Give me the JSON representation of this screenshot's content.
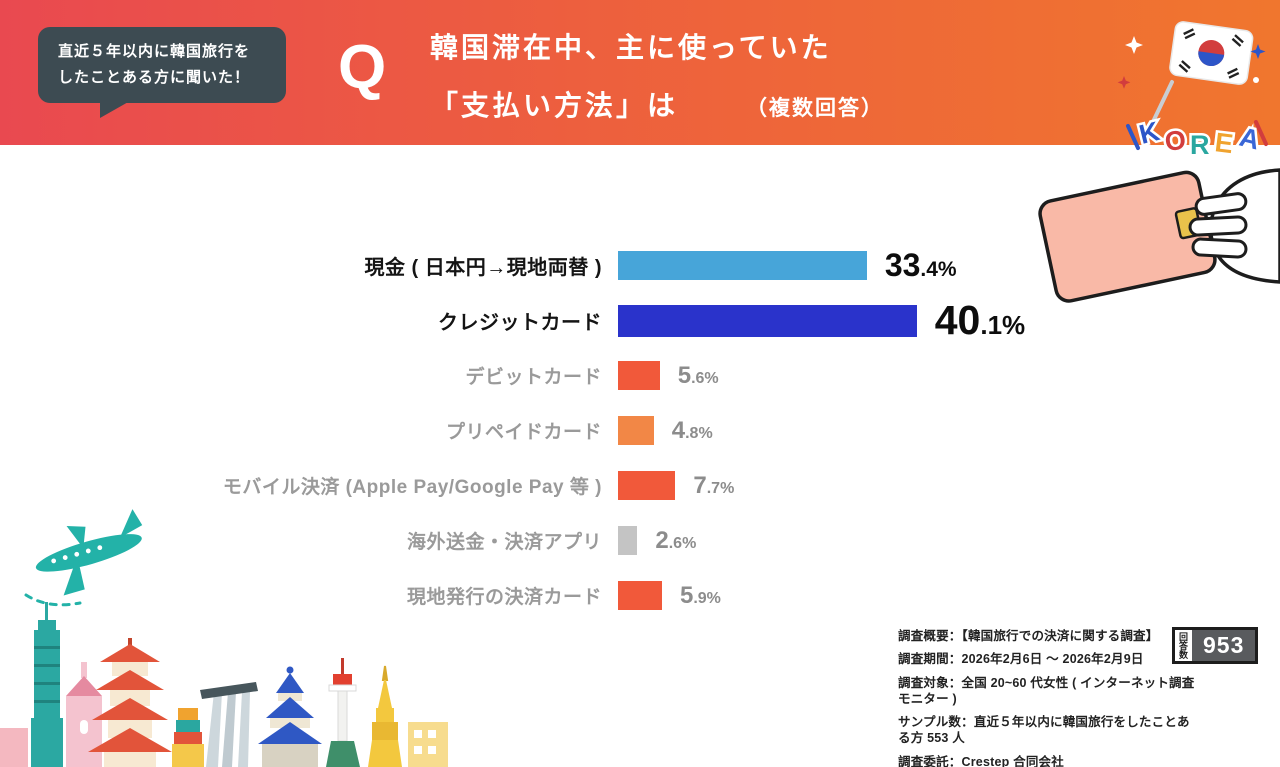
{
  "header": {
    "bubble_line1": "直近５年以内に韓国旅行を",
    "bubble_line2": "したことある方に聞いた！",
    "q_mark": "Q",
    "title_line1": "韓国滞在中、主に使っていた",
    "title_line2": "「支払い方法」は",
    "title_suffix": "（複数回答）",
    "korea_label": "KOREA",
    "korea_colors": [
      "#2d55c8",
      "#d23d3d",
      "#2aa7a0",
      "#f0a32f",
      "#3a66d6"
    ],
    "gradient_left": "#e94950",
    "gradient_right": "#f0762e"
  },
  "chart_data": {
    "type": "bar",
    "orientation": "horizontal",
    "title": "韓国滞在中、主に使っていた「支払い方法」は（複数回答）",
    "unit": "%",
    "xlim": [
      0,
      45
    ],
    "categories": [
      "現金 ( 日本円→現地両替 )",
      "クレジットカード",
      "デビットカード",
      "プリペイドカード",
      "モバイル決済 (Apple Pay/Google Pay 等 )",
      "海外送金・決済アプリ",
      "現地発行の決済カード"
    ],
    "values": [
      33.4,
      40.1,
      5.6,
      4.8,
      7.7,
      2.6,
      5.9
    ],
    "bar_colors": [
      "#47a5d9",
      "#2a33cb",
      "#f1593a",
      "#f28746",
      "#f1593a",
      "#c4c4c4",
      "#f1593a"
    ],
    "label_emphasis": [
      true,
      true,
      false,
      false,
      false,
      false,
      false
    ],
    "value_size": [
      "medium",
      "large",
      "small",
      "small",
      "small",
      "small",
      "small"
    ]
  },
  "footer": {
    "lines": [
      "調査概要：【韓国旅行での決済に関する調査】",
      "調査期間：2026年2月6日 ～ 2026年2月9日",
      "調査対象：全国 20~60 代女性 ( インターネット調査モニター )",
      "サンプル数：直近５年以内に韓国旅行をしたことある方 553 人",
      "調査委託：Crestep 合同会社"
    ],
    "respondents_label": "回答数",
    "respondents_value": "953"
  }
}
